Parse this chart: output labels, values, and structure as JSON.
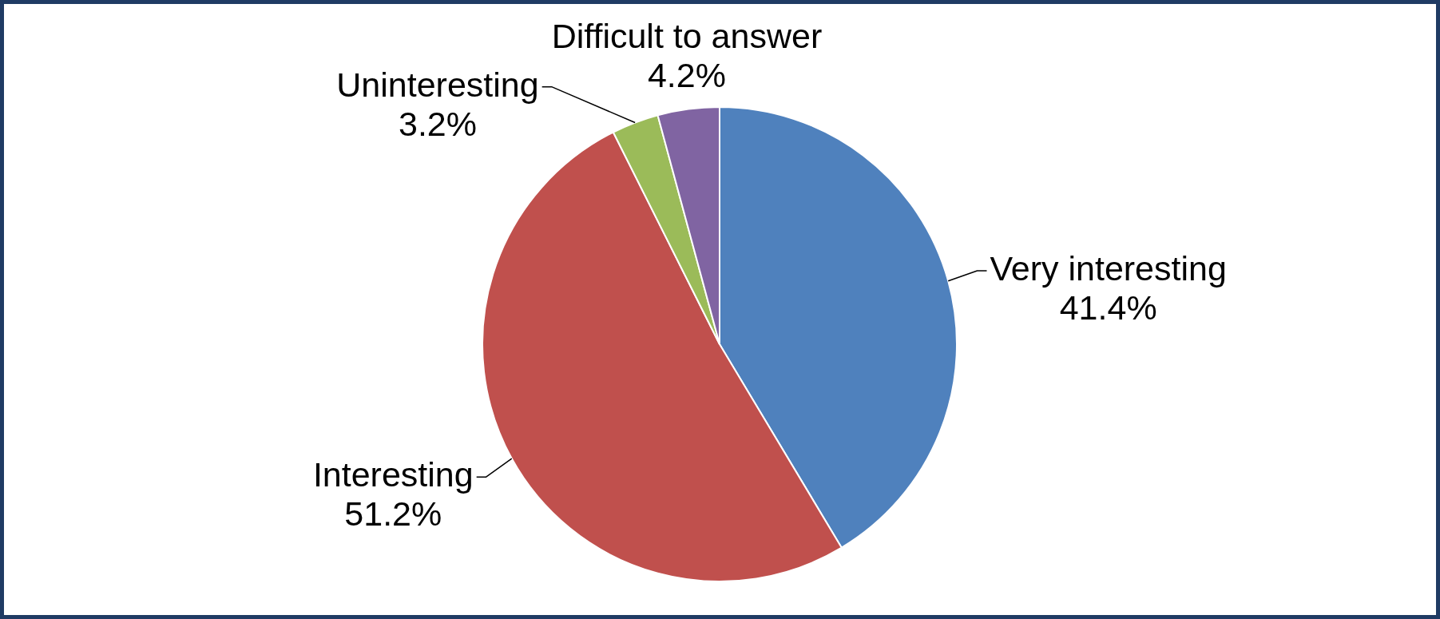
{
  "chart_data": {
    "type": "pie",
    "categories": [
      "Very interesting",
      "Interesting",
      "Uninteresting",
      "Difficult to answer"
    ],
    "values": [
      41.4,
      51.2,
      3.2,
      4.2
    ],
    "colors": [
      "#4f81bd",
      "#c0504d",
      "#9bbb59",
      "#8064a2"
    ],
    "value_labels": [
      "41.4%",
      "51.2%",
      "3.2%",
      "4.2%"
    ]
  }
}
